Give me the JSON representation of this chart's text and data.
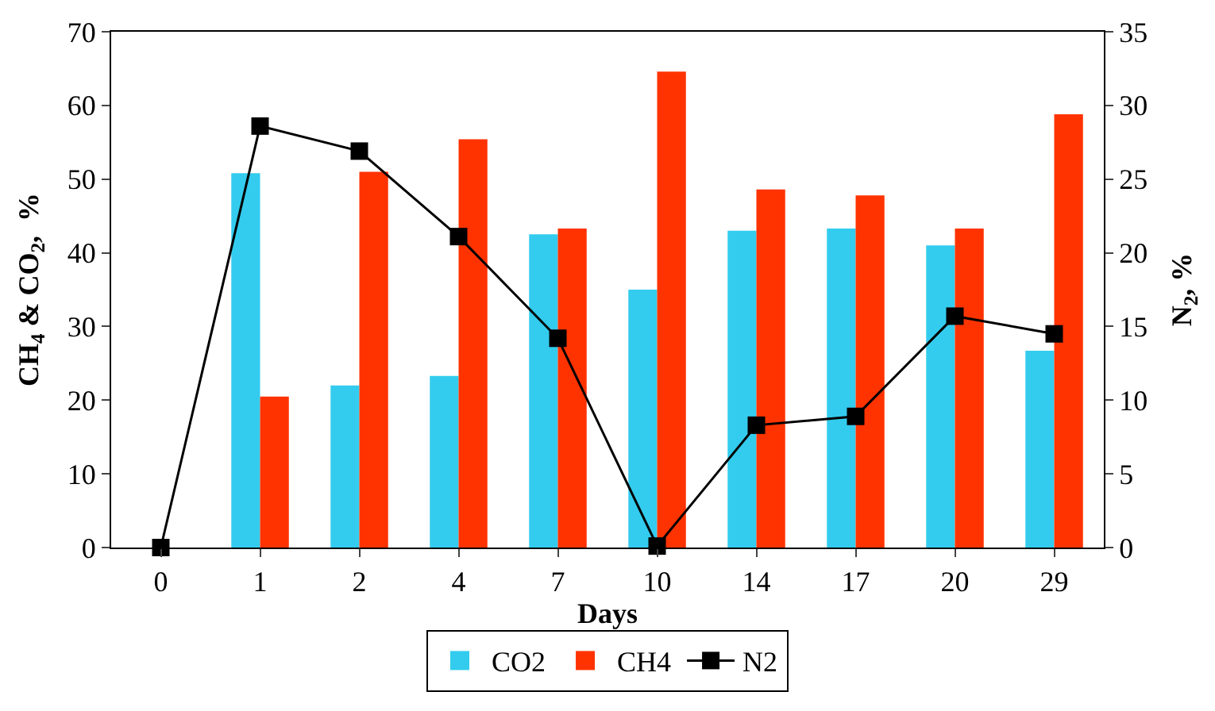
{
  "chart_data": {
    "type": "bar",
    "categories": [
      "0",
      "1",
      "2",
      "4",
      "7",
      "10",
      "14",
      "17",
      "20",
      "29"
    ],
    "xlabel": "Days",
    "ylabel": "CH$_{4}$ & CO$_{2}$,  %",
    "y2label": "N$_{2}$, %",
    "ylim": [
      0,
      70
    ],
    "yticks": [
      0,
      10,
      20,
      30,
      40,
      50,
      60,
      70
    ],
    "y2lim": [
      0,
      35
    ],
    "y2ticks": [
      0,
      5,
      10,
      15,
      20,
      25,
      30,
      35
    ],
    "legend": "bottom",
    "grid": false,
    "marker": "square",
    "series": [
      {
        "name": "CO2",
        "color": "#33ccee",
        "values": [
          null,
          50.8,
          22,
          23.3,
          42.5,
          35,
          43,
          43.3,
          41,
          26.7
        ]
      },
      {
        "name": "CH4",
        "color": "#ff3300",
        "values": [
          null,
          20.5,
          51,
          55.4,
          43.3,
          64.6,
          48.6,
          47.8,
          43.3,
          58.8
        ]
      },
      {
        "name": "N2",
        "type": "line",
        "axis": "y2",
        "color": "#000000",
        "values": [
          0,
          28.6,
          26.9,
          21.1,
          14.2,
          0.1,
          8.3,
          8.9,
          15.7,
          14.5
        ]
      }
    ]
  }
}
